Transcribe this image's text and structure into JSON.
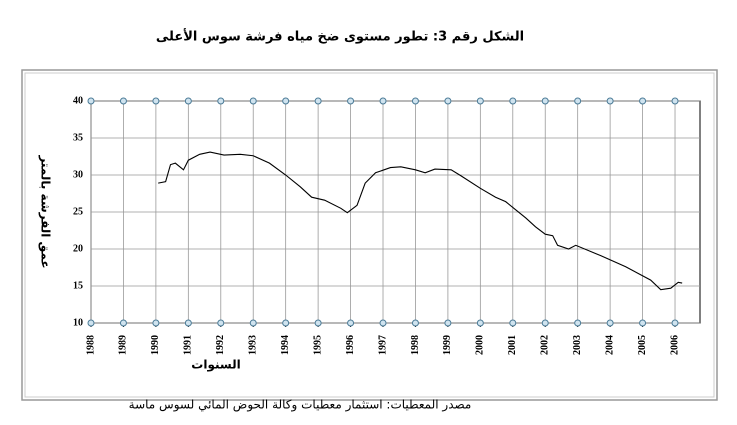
{
  "chart_data": {
    "type": "line",
    "title": "الشكل رقم 3: تطور مستوى ضخ مياه فرشة سوس الأعلى",
    "x_label": "السنوات",
    "y_label": "عمق الفرشة بالمتر",
    "source": "مصدر المعطيات: استثمار معطيات وكالة الحوض المائي لسوس ماسة",
    "x": [
      1990.07,
      1990.3,
      1990.45,
      1990.6,
      1990.85,
      1991.0,
      1991.35,
      1991.67,
      1992.1,
      1992.6,
      1993.0,
      1993.5,
      1994.0,
      1994.45,
      1994.8,
      1995.2,
      1995.7,
      1995.9,
      1996.2,
      1996.45,
      1996.77,
      1997.23,
      1997.55,
      1998.0,
      1998.3,
      1998.6,
      1999.1,
      1999.4,
      2000.0,
      2000.47,
      2000.78,
      2001.09,
      2001.4,
      2001.7,
      2002.0,
      2002.23,
      2002.38,
      2002.72,
      2002.94,
      2003.71,
      2004.48,
      2005.25,
      2005.56,
      2005.87,
      2006.1,
      2006.22
    ],
    "series": [
      {
        "color": "#000000",
        "values": [
          28.9,
          29.1,
          31.4,
          31.6,
          30.7,
          32.0,
          32.8,
          33.1,
          32.7,
          32.8,
          32.6,
          31.6,
          30.0,
          28.4,
          27.0,
          26.6,
          25.5,
          24.9,
          25.9,
          28.9,
          30.3,
          31.0,
          31.1,
          30.7,
          30.3,
          30.8,
          30.7,
          29.9,
          28.2,
          27.0,
          26.4,
          25.3,
          24.2,
          23.0,
          22.0,
          21.8,
          20.5,
          20.0,
          20.5,
          19.1,
          17.6,
          15.8,
          14.5,
          14.7,
          15.5,
          15.4
        ]
      }
    ],
    "xlim": [
      1988,
      2006.77
    ],
    "xticks": [
      1988,
      1989,
      1990,
      1991,
      1992,
      1993,
      1994,
      1995,
      1996,
      1997,
      1998,
      1999,
      2000,
      2001,
      2002,
      2003,
      2004,
      2005,
      2006
    ],
    "ylim": [
      10,
      40
    ],
    "yticks": [
      10,
      15,
      20,
      25,
      30,
      35,
      40
    ],
    "grid": true
  }
}
